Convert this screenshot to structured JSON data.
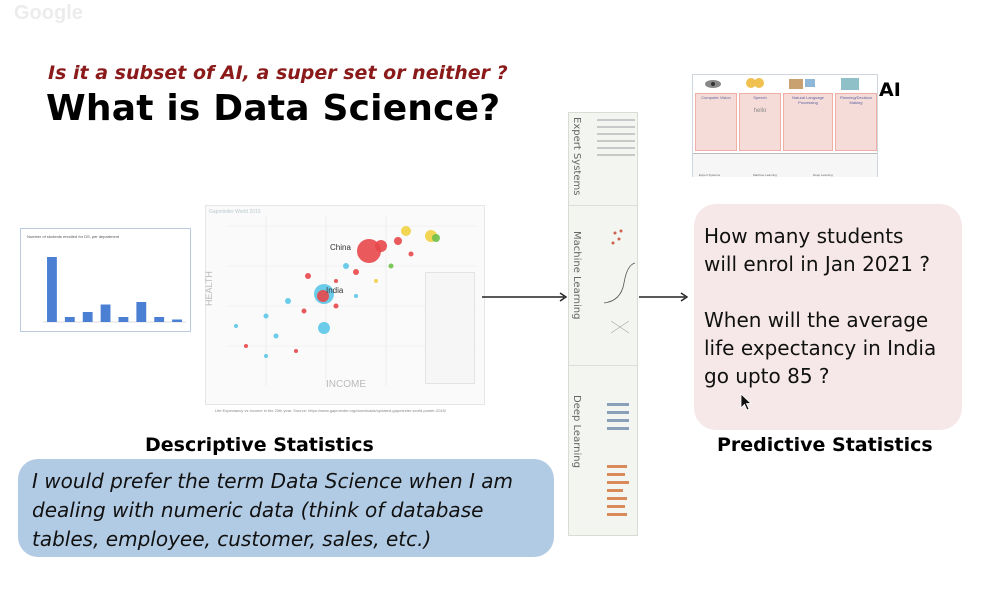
{
  "brand": "Google",
  "slide": {
    "subtitle": "Is it a subset of AI, a super set or neither ?",
    "title": "What is Data Science?"
  },
  "bar_chart": {
    "title": "Number of students enrolled for DS, per department",
    "chart_data": {
      "type": "bar",
      "categories": [
        "",
        "",
        "",
        "",
        "",
        "",
        "",
        ""
      ],
      "values": [
        26,
        2,
        4,
        7,
        2,
        8,
        2,
        1
      ],
      "title": "Number of students enrolled for DS, per department",
      "ylim": [
        0,
        30
      ],
      "bar_color": "#4a7fd4"
    }
  },
  "gapminder": {
    "header": "Gapminder World 2015",
    "y_label": "HEALTH",
    "x_label": "INCOME",
    "labels": {
      "china": "China",
      "india": "India"
    },
    "caption": "Life Expectancy vs Income in the 20th year. Source: https://www.gapminder.org/downloads/updated-gapminder-world-poster-2015/"
  },
  "descriptive_label": "Descriptive Statistics",
  "predictive_label": "Predictive Statistics",
  "quote": {
    "line1": "I would prefer the term Data Science when I am",
    "line2": "dealing with numeric data (think of database",
    "line3": "tables, employee, customer, sales, etc.)"
  },
  "strip": {
    "expert": "Expert Systems",
    "ml": "Machine Learning",
    "dl": "Deep Learning"
  },
  "ai_diagram": {
    "label": "AI",
    "columns": [
      "Computer Vision",
      "Speech",
      "Natural Language Processing",
      "Planning/Decision Making"
    ],
    "speech_text": "hello",
    "bottom_labels": [
      "Expert Systems",
      "Machine Learning",
      "Deep Learning"
    ]
  },
  "questions": {
    "q1_line1": "How many students",
    "q1_line2": "will enrol in Jan 2021 ?",
    "q2_line1": "When will the average",
    "q2_line2": "life expectancy in India",
    "q2_line3": "go upto 85 ?"
  },
  "colors": {
    "subtitle": "#8b1a1a",
    "quote_bg": "#b2cbe4",
    "question_bg": "#f6e8e8",
    "bar": "#4a7fd4",
    "bubble": "#e8474a"
  }
}
